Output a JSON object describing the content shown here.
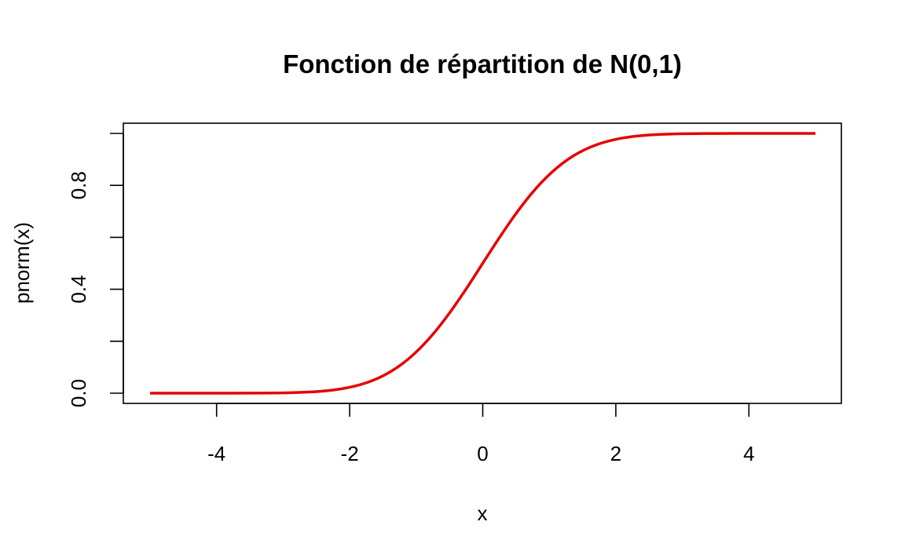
{
  "chart_data": {
    "type": "line",
    "title": "Fonction de répartition de N(0,1)",
    "xlabel": "x",
    "ylabel": "pnorm(x)",
    "xlim": [
      -5,
      5
    ],
    "ylim": [
      0,
      1
    ],
    "x_ticks": [
      -4,
      -2,
      0,
      2,
      4
    ],
    "x_tick_labels": [
      "-4",
      "-2",
      "0",
      "2",
      "4"
    ],
    "y_ticks": [
      0,
      0.2,
      0.4,
      0.6,
      0.8,
      1.0
    ],
    "y_tick_labels": [
      "0.0",
      "",
      "0.4",
      "",
      "0.8",
      ""
    ],
    "grid": false,
    "line_color": "#e60000",
    "series": [
      {
        "x": [
          -5,
          -4.5,
          -4,
          -3.5,
          -3,
          -2.75,
          -2.5,
          -2.25,
          -2,
          -1.75,
          -1.5,
          -1.25,
          -1,
          -0.75,
          -0.5,
          -0.25,
          0,
          0.25,
          0.5,
          0.75,
          1,
          1.25,
          1.5,
          1.75,
          2,
          2.25,
          2.5,
          2.75,
          3,
          3.5,
          4,
          4.5,
          5
        ],
        "values": [
          0.0,
          0.0,
          0.0,
          0.0002,
          0.0013,
          0.003,
          0.0062,
          0.0122,
          0.0228,
          0.0401,
          0.0668,
          0.1056,
          0.1587,
          0.2266,
          0.3085,
          0.4013,
          0.5,
          0.5987,
          0.6915,
          0.7734,
          0.8413,
          0.8944,
          0.9332,
          0.9599,
          0.9772,
          0.9878,
          0.9938,
          0.997,
          0.9987,
          0.9998,
          1.0,
          1.0,
          1.0
        ]
      }
    ]
  }
}
